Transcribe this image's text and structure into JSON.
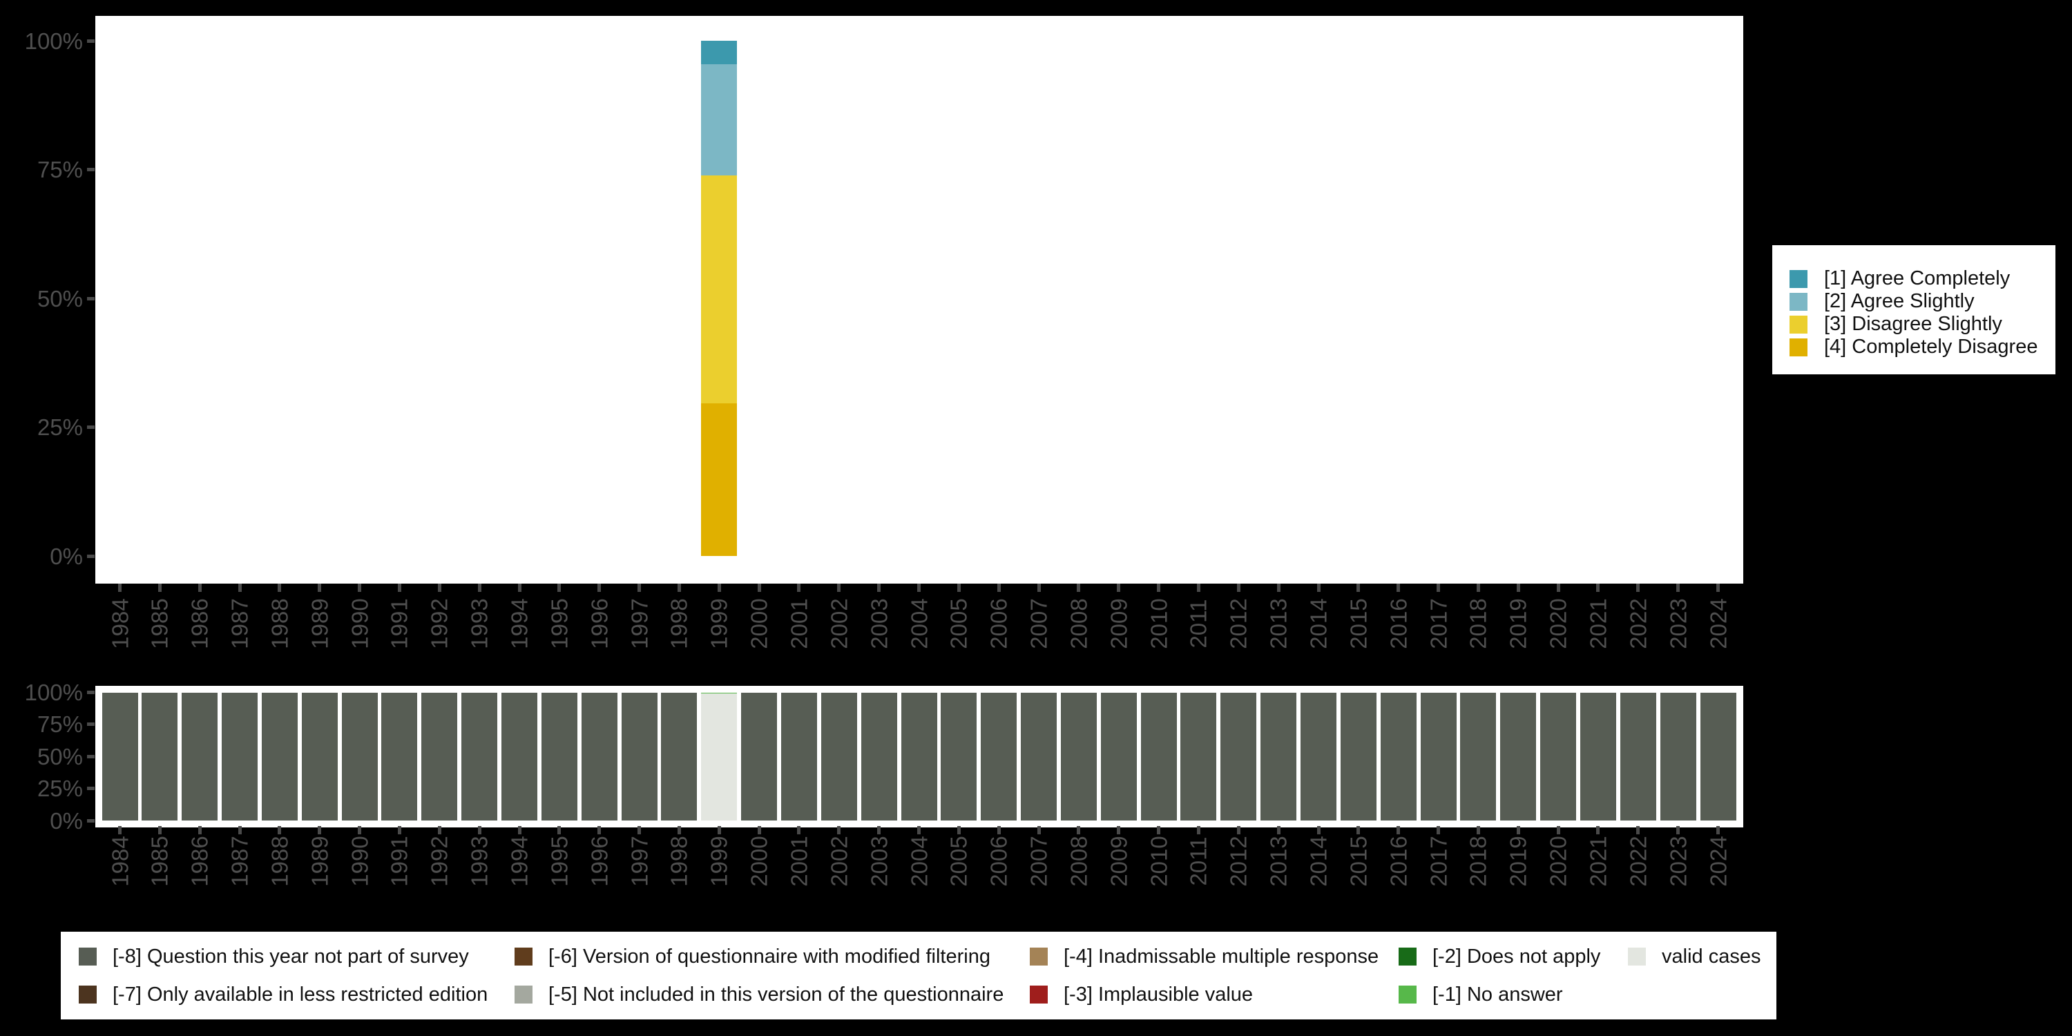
{
  "page": {
    "background_color": "#000000",
    "plot_background_color": "#ffffff",
    "axis_text_color": "#4f4f4f",
    "legend_text_color": "#111111"
  },
  "chart_data": {
    "charts": [
      {
        "id": "response-distribution",
        "type": "bar",
        "stacked": true,
        "orientation": "vertical",
        "grid": false,
        "legend_position": "right",
        "y_axis": {
          "unit": "%",
          "min": 0,
          "max": 100,
          "ticks": [
            "100%",
            "75%",
            "50%",
            "25%",
            "0%"
          ],
          "tick_values": [
            100,
            75,
            50,
            25,
            0
          ]
        },
        "x_axis": {
          "categories": [
            "1984",
            "1985",
            "1986",
            "1987",
            "1988",
            "1989",
            "1990",
            "1991",
            "1992",
            "1993",
            "1994",
            "1995",
            "1996",
            "1997",
            "1998",
            "1999",
            "2000",
            "2001",
            "2002",
            "2003",
            "2004",
            "2005",
            "2006",
            "2007",
            "2008",
            "2009",
            "2010",
            "2011",
            "2012",
            "2013",
            "2014",
            "2015",
            "2016",
            "2017",
            "2018",
            "2019",
            "2020",
            "2021",
            "2022",
            "2023",
            "2024"
          ]
        },
        "series": [
          {
            "label": "[1] Agree Completely",
            "color": "#3c99ad",
            "points": [
              {
                "year": "1999",
                "value": 4.6
              }
            ]
          },
          {
            "label": "[2] Agree Slightly",
            "color": "#7cb7c5",
            "points": [
              {
                "year": "1999",
                "value": 21.6
              }
            ]
          },
          {
            "label": "[3] Disagree Slightly",
            "color": "#ebcf2e",
            "points": [
              {
                "year": "1999",
                "value": 44.2
              }
            ]
          },
          {
            "label": "[4] Completely Disagree",
            "color": "#e0b000",
            "points": [
              {
                "year": "1999",
                "value": 29.6
              }
            ]
          }
        ]
      },
      {
        "id": "missing-values",
        "type": "bar",
        "stacked": true,
        "orientation": "vertical",
        "grid": false,
        "legend_position": "bottom",
        "y_axis": {
          "unit": "%",
          "min": 0,
          "max": 100,
          "ticks": [
            "100%",
            "75%",
            "50%",
            "25%",
            "0%"
          ],
          "tick_values": [
            100,
            75,
            50,
            25,
            0
          ]
        },
        "x_axis": {
          "categories": [
            "1984",
            "1985",
            "1986",
            "1987",
            "1988",
            "1989",
            "1990",
            "1991",
            "1992",
            "1993",
            "1994",
            "1995",
            "1996",
            "1997",
            "1998",
            "1999",
            "2000",
            "2001",
            "2002",
            "2003",
            "2004",
            "2005",
            "2006",
            "2007",
            "2008",
            "2009",
            "2010",
            "2011",
            "2012",
            "2013",
            "2014",
            "2015",
            "2016",
            "2017",
            "2018",
            "2019",
            "2020",
            "2021",
            "2022",
            "2023",
            "2024"
          ]
        },
        "default_stack": [
          {
            "label": "[-8] Question this year not part of survey",
            "color": "#575d54",
            "value": 100
          }
        ],
        "year_overrides": {
          "1999": [
            {
              "label": "valid cases",
              "color": "#e3e6e0",
              "value": 99.0
            },
            {
              "label": "[-1] No answer",
              "color": "#57b84a",
              "value": 1.0
            }
          ]
        },
        "legend": [
          {
            "label": "[-8] Question this year not part of survey",
            "color": "#575d54"
          },
          {
            "label": "[-7] Only available in less restricted edition",
            "color": "#4c341f"
          },
          {
            "label": "[-6] Version of questionnaire with modified filtering",
            "color": "#603d1d"
          },
          {
            "label": "[-5] Not included in this version of the questionnaire",
            "color": "#a4a89f"
          },
          {
            "label": "[-4] Inadmissable multiple response",
            "color": "#a48356"
          },
          {
            "label": "[-3] Implausible value",
            "color": "#9f1e1c"
          },
          {
            "label": "[-2] Does not apply",
            "color": "#186b18"
          },
          {
            "label": "[-1] No answer",
            "color": "#57b84a"
          },
          {
            "label": "valid cases",
            "color": "#e3e6e0"
          }
        ]
      }
    ]
  }
}
